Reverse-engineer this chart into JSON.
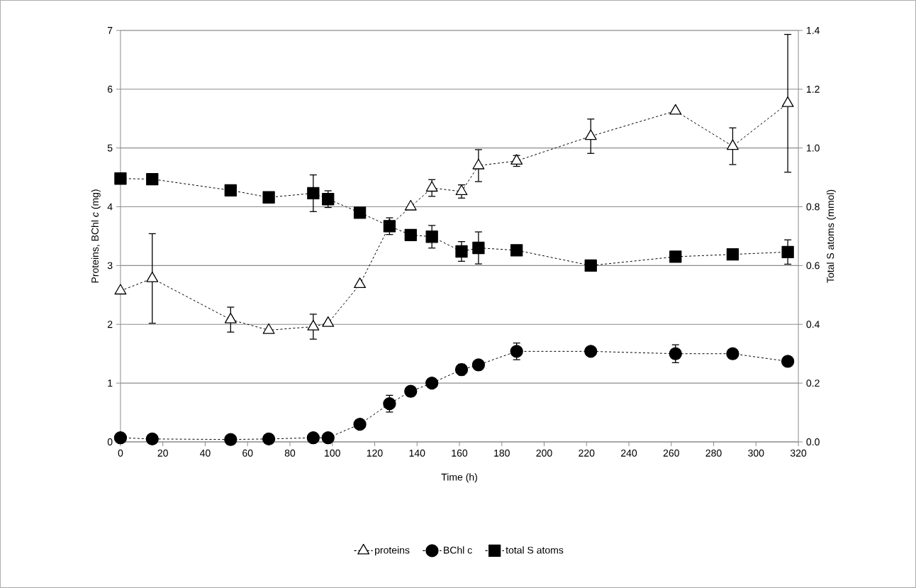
{
  "chart_data": {
    "type": "line",
    "xlabel": "Time (h)",
    "ylabel": "Proteins, BChl *c* (mg)",
    "y2label": "Total S atoms (mmol)",
    "x": [
      0,
      15,
      52,
      70,
      91,
      98,
      113,
      127,
      137,
      147,
      161,
      169,
      187,
      222,
      262,
      289,
      315
    ],
    "xlim": [
      0,
      320
    ],
    "xticks": [
      0,
      20,
      40,
      60,
      80,
      100,
      120,
      140,
      160,
      180,
      200,
      220,
      240,
      260,
      280,
      300,
      320
    ],
    "ylim": [
      0,
      7
    ],
    "yticks": [
      0,
      1,
      2,
      3,
      4,
      5,
      6,
      7
    ],
    "y2lim": [
      0,
      1.4
    ],
    "y2ticks": [
      {
        "value": 0,
        "label": "0.0"
      },
      {
        "value": 0.2,
        "label": "0.2"
      },
      {
        "value": 0.4,
        "label": "0.4"
      },
      {
        "value": 0.6,
        "label": "0.6"
      },
      {
        "value": 0.8,
        "label": "0.8"
      },
      {
        "value": 1.0,
        "label": "1.0"
      },
      {
        "value": 1.2,
        "label": "1.2"
      },
      {
        "value": 1.4,
        "label": "1.4"
      }
    ],
    "grid": "y",
    "legend": "bottom",
    "line_style": "dashed",
    "series": [
      {
        "name": "proteins",
        "color": "#000000",
        "marker": "triangle",
        "values": [
          2.57,
          2.78,
          2.08,
          1.9,
          1.96,
          2.02,
          2.68,
          3.68,
          4.0,
          4.32,
          4.26,
          4.7,
          4.78,
          5.2,
          5.63,
          5.03,
          5.76
        ],
        "errors": [
          null,
          0.77,
          0.22,
          null,
          0.22,
          null,
          null,
          null,
          null,
          0.15,
          0.12,
          0.28,
          0.1,
          0.3,
          null,
          0.32,
          1.18
        ]
      },
      {
        "name": "BChl c",
        "color": "#000000",
        "marker": "circle",
        "values": [
          0.07,
          0.05,
          0.04,
          0.05,
          0.07,
          0.07,
          0.3,
          0.65,
          0.86,
          1.0,
          1.23,
          1.31,
          1.54,
          1.54,
          1.5,
          1.5,
          1.37
        ],
        "errors": [
          null,
          null,
          null,
          null,
          null,
          null,
          null,
          0.15,
          null,
          null,
          0.1,
          null,
          0.15,
          null,
          0.16,
          null,
          null
        ]
      },
      {
        "name": "total S atoms",
        "color": "#000000",
        "marker": "square",
        "axis": "y2",
        "values": [
          0.896,
          0.894,
          0.856,
          0.832,
          0.846,
          0.826,
          0.78,
          0.734,
          0.704,
          0.698,
          0.648,
          0.66,
          0.652,
          0.6,
          0.63,
          0.638,
          0.646
        ],
        "errors": [
          null,
          null,
          null,
          null,
          0.064,
          0.03,
          null,
          0.03,
          0.02,
          0.04,
          0.035,
          0.056,
          null,
          null,
          null,
          null,
          0.043
        ]
      }
    ]
  }
}
